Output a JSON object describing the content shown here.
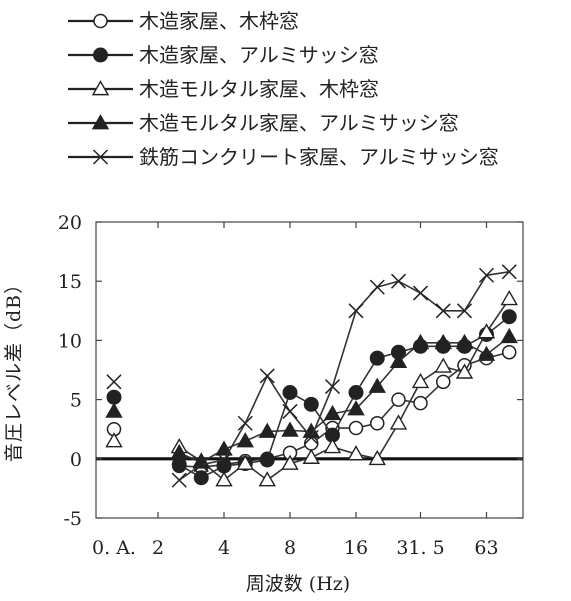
{
  "chart_data": {
    "type": "line",
    "title": "",
    "xlabel": "周波数 (Hz)",
    "ylabel": "音圧レベル差（dB）",
    "ylim": [
      -5,
      20
    ],
    "yticks": [
      "-5",
      "0",
      "5",
      "10",
      "15",
      "20"
    ],
    "x_scale": "log2 (octave)",
    "x_tick_labels": [
      "0. A.",
      "2",
      "4",
      "8",
      "16",
      "31. 5",
      "63"
    ],
    "x": [
      2.5,
      3.15,
      4,
      5,
      6.3,
      8,
      10,
      12.5,
      16,
      20,
      25,
      31.5,
      40,
      50,
      63,
      80
    ],
    "overall_label": "0. A.",
    "grid": false,
    "legend_position": "top",
    "series": [
      {
        "name": "木造家屋、木枠窓",
        "marker": "circle-open",
        "oa": 2.5,
        "values": [
          -0.6,
          -0.7,
          -0.5,
          -0.2,
          0,
          0.5,
          1.3,
          2.6,
          2.6,
          3.0,
          5.0,
          4.7,
          6.5,
          7.9,
          8.5,
          9.0
        ]
      },
      {
        "name": "木造家屋、アルミサッシ窓",
        "marker": "circle-filled",
        "oa": 5.2,
        "values": [
          -0.5,
          -1.6,
          -0.6,
          -0.4,
          -0.1,
          5.6,
          4.6,
          2.0,
          5.6,
          8.5,
          9.0,
          9.5,
          9.5,
          9.5,
          10.5,
          12.0
        ]
      },
      {
        "name": "木造モルタル家屋、木枠窓",
        "marker": "triangle-open",
        "oa": 1.5,
        "values": [
          1.0,
          -0.2,
          -1.8,
          -0.4,
          -1.8,
          -0.4,
          0.1,
          1.0,
          0.4,
          0,
          3.0,
          6.5,
          7.8,
          7.3,
          10.7,
          13.5
        ]
      },
      {
        "name": "木造モルタル家屋、アルミサッシ窓",
        "marker": "triangle-filled",
        "oa": 4.0,
        "values": [
          0.5,
          -0.3,
          0.8,
          1.5,
          2.3,
          2.4,
          2.3,
          3.8,
          4.2,
          6.1,
          8.2,
          9.8,
          9.8,
          9.8,
          8.8,
          10.3
        ]
      },
      {
        "name": "鉄筋コンクリート家屋、アルミサッシ窓",
        "marker": "cross",
        "oa": 6.5,
        "values": [
          -1.8,
          -0.5,
          -0.1,
          3.0,
          7.0,
          4.0,
          1.8,
          6.1,
          12.5,
          14.5,
          15.0,
          14.0,
          12.5,
          12.5,
          15.5,
          15.8
        ]
      }
    ]
  }
}
